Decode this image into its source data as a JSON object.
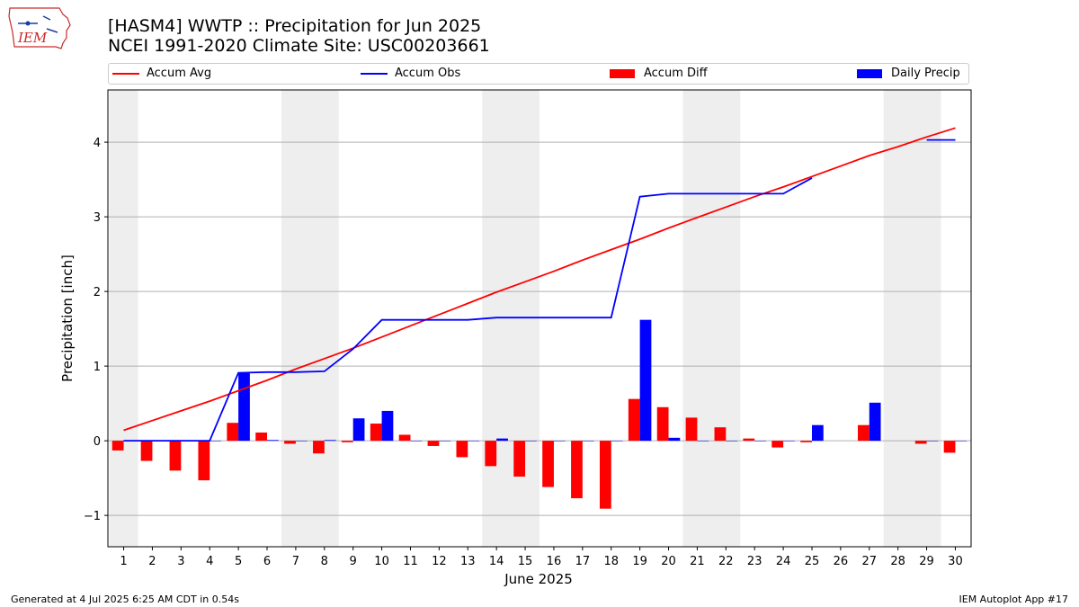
{
  "branding": {
    "logo_text": "IEM",
    "logo_color": "#cc2a2a"
  },
  "chart_data": {
    "type": "bar",
    "title": "[HASM4] WWTP :: Precipitation for Jun 2025",
    "subtitle": "NCEI 1991-2020 Climate Site: USC00203661",
    "xlabel": "June 2025",
    "ylabel": "Precipitation [inch]",
    "ylim": [
      -1.42,
      4.7
    ],
    "yticks": [
      -1,
      0,
      1,
      2,
      3,
      4
    ],
    "ytick_labels": [
      "−1",
      "0",
      "1",
      "2",
      "3",
      "4"
    ],
    "grid": true,
    "weekend_shading": [
      [
        1,
        1
      ],
      [
        7,
        8
      ],
      [
        14,
        15
      ],
      [
        21,
        22
      ],
      [
        28,
        29
      ]
    ],
    "shade_color": "#eeeeee",
    "categories": [
      "1",
      "2",
      "3",
      "4",
      "5",
      "6",
      "7",
      "8",
      "9",
      "10",
      "11",
      "12",
      "13",
      "14",
      "15",
      "16",
      "17",
      "18",
      "19",
      "20",
      "21",
      "22",
      "23",
      "24",
      "25",
      "26",
      "27",
      "28",
      "29",
      "30"
    ],
    "series": [
      {
        "name": "Accum Avg",
        "kind": "line",
        "color": "#ff0000",
        "values": [
          0.14,
          0.27,
          0.4,
          0.53,
          0.67,
          0.81,
          0.96,
          1.1,
          1.24,
          1.39,
          1.54,
          1.69,
          1.84,
          1.99,
          2.13,
          2.27,
          2.42,
          2.56,
          2.7,
          2.85,
          2.99,
          3.13,
          3.27,
          3.4,
          3.54,
          3.68,
          3.82,
          3.94,
          4.07,
          4.19
        ]
      },
      {
        "name": "Accum Obs",
        "kind": "line",
        "color": "#0000ff",
        "values": [
          0.0,
          0.0,
          0.0,
          0.0,
          0.91,
          0.92,
          0.92,
          0.93,
          1.23,
          1.62,
          1.62,
          1.62,
          1.62,
          1.65,
          1.65,
          1.65,
          1.65,
          1.65,
          3.27,
          3.31,
          3.31,
          3.31,
          3.31,
          3.31,
          3.52,
          null,
          null,
          null,
          4.03,
          4.03
        ]
      },
      {
        "name": "Accum Diff",
        "kind": "bar",
        "color": "#ff0000",
        "values": [
          -0.13,
          -0.27,
          -0.4,
          -0.53,
          0.24,
          0.11,
          -0.04,
          -0.17,
          -0.02,
          0.23,
          0.08,
          -0.07,
          -0.22,
          -0.34,
          -0.48,
          -0.62,
          -0.77,
          -0.91,
          0.56,
          0.45,
          0.31,
          0.18,
          0.03,
          -0.09,
          -0.02,
          null,
          0.21,
          null,
          -0.04,
          -0.16
        ]
      },
      {
        "name": "Daily Precip",
        "kind": "bar",
        "color": "#0000ff",
        "values": [
          0.0,
          0.0,
          0.0,
          0.0,
          0.91,
          0.01,
          0.0,
          0.01,
          0.3,
          0.4,
          0.0,
          0.0,
          0.0,
          0.03,
          0.0,
          0.0,
          0.0,
          0.0,
          1.62,
          0.04,
          0.0,
          0.0,
          0.0,
          0.0,
          0.21,
          null,
          0.51,
          null,
          0.0,
          0.0
        ]
      }
    ],
    "legend": [
      {
        "label": "Accum Avg",
        "kind": "line",
        "color": "#ff0000"
      },
      {
        "label": "Accum Obs",
        "kind": "line",
        "color": "#0000ff"
      },
      {
        "label": "Accum Diff",
        "kind": "bar",
        "color": "#ff0000"
      },
      {
        "label": "Daily Precip",
        "kind": "bar",
        "color": "#0000ff"
      }
    ],
    "legend_position": "top"
  },
  "footer": {
    "generated": "Generated at 4 Jul 2025 6:25 AM CDT in 0.54s",
    "app": "IEM Autoplot App #17"
  }
}
